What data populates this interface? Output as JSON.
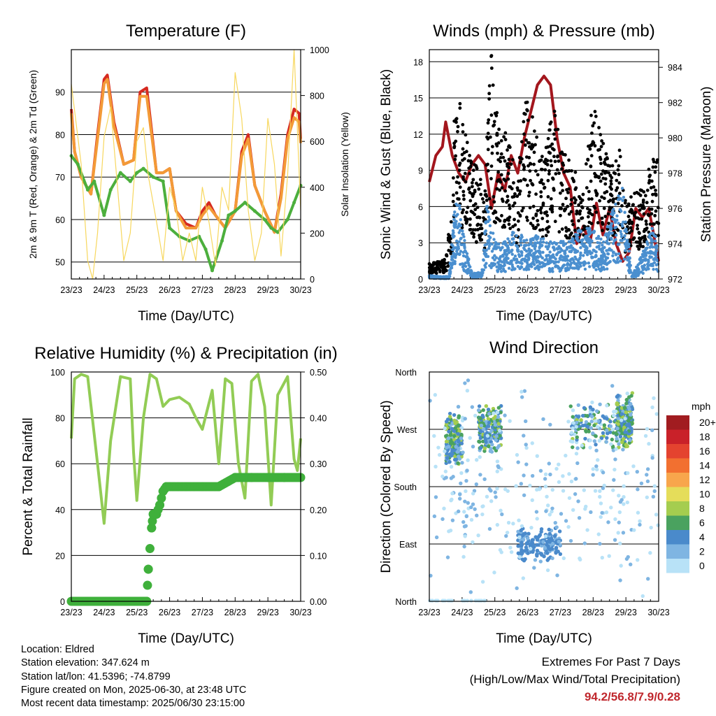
{
  "chart_data": [
    {
      "type": "line",
      "title": "Temperature (F)",
      "xlabel": "Time (Day/UTC)",
      "ylabel": "2m & 9m T (Red, Orange) & 2m Td (Green)",
      "y2label": "Solar Insolation (Yellow)",
      "x_ticks": [
        "23/23",
        "24/23",
        "25/23",
        "26/23",
        "27/23",
        "28/23",
        "29/23",
        "30/23"
      ],
      "ylim": [
        46,
        100
      ],
      "y_ticks": [
        50,
        60,
        70,
        80,
        90
      ],
      "y2lim": [
        0,
        1000
      ],
      "y2_ticks": [
        0,
        200,
        400,
        600,
        800,
        1000
      ],
      "grid": true,
      "series": [
        {
          "color": "#d62a20",
          "x": [
            0,
            0.1,
            0.3,
            0.6,
            0.8,
            1.0,
            1.1,
            1.3,
            1.6,
            1.9,
            2.1,
            2.3,
            2.6,
            2.8,
            3.0,
            3.2,
            3.5,
            3.8,
            4.0,
            4.2,
            4.4,
            4.7,
            5.0,
            5.2,
            5.4,
            5.6,
            5.9,
            6.2,
            6.4,
            6.6,
            6.8,
            6.95,
            7.0
          ],
          "values": [
            86,
            76,
            70,
            66,
            80,
            93,
            94,
            83,
            73,
            74,
            90,
            91,
            71,
            71,
            72,
            62,
            59,
            58,
            62,
            64,
            61,
            58,
            62,
            76,
            80,
            68,
            62,
            57,
            66,
            80,
            86,
            85,
            79
          ]
        },
        {
          "color": "#f39a37",
          "x": [
            0,
            0.1,
            0.3,
            0.6,
            0.8,
            1.0,
            1.1,
            1.3,
            1.6,
            1.9,
            2.1,
            2.3,
            2.6,
            2.8,
            3.0,
            3.2,
            3.5,
            3.8,
            4.0,
            4.2,
            4.4,
            4.7,
            5.0,
            5.2,
            5.4,
            5.6,
            5.9,
            6.2,
            6.4,
            6.6,
            6.8,
            6.95,
            7.0
          ],
          "values": [
            85,
            76,
            70,
            66,
            79,
            92,
            93,
            82,
            73,
            74,
            89,
            89,
            71,
            71,
            72,
            62,
            58,
            58,
            61,
            63,
            61,
            58,
            62,
            75,
            79,
            68,
            62,
            57,
            65,
            79,
            84,
            83,
            78
          ]
        },
        {
          "color": "#4caf3d",
          "x": [
            0,
            0.2,
            0.5,
            0.7,
            1.0,
            1.2,
            1.5,
            1.8,
            2.0,
            2.2,
            2.5,
            2.8,
            3.0,
            3.3,
            3.6,
            3.9,
            4.1,
            4.3,
            4.6,
            4.8,
            5.0,
            5.3,
            5.6,
            5.9,
            6.1,
            6.3,
            6.6,
            6.8,
            7.0
          ],
          "values": [
            75,
            73,
            67,
            69,
            61,
            67,
            71,
            69,
            71,
            72,
            70,
            69,
            58,
            56,
            55,
            56,
            53,
            48,
            55,
            61,
            62,
            64,
            62,
            60,
            58,
            57,
            60,
            64,
            68
          ]
        },
        {
          "color": "#f7d75e",
          "axis": "y2",
          "x": [
            0,
            0.3,
            0.5,
            0.65,
            0.8,
            1.0,
            1.2,
            1.35,
            1.6,
            1.8,
            2.0,
            2.2,
            2.35,
            2.6,
            2.8,
            3.0,
            3.2,
            3.4,
            3.6,
            3.8,
            4.0,
            4.2,
            4.4,
            4.6,
            4.8,
            5.0,
            5.2,
            5.4,
            5.6,
            5.8,
            6.0,
            6.2,
            6.4,
            6.6,
            6.8,
            7.0
          ],
          "values": [
            850,
            500,
            80,
            0,
            200,
            620,
            750,
            500,
            80,
            200,
            600,
            660,
            450,
            250,
            80,
            400,
            300,
            80,
            200,
            80,
            400,
            250,
            60,
            400,
            300,
            900,
            700,
            300,
            80,
            200,
            700,
            500,
            100,
            450,
            1000,
            300
          ]
        }
      ]
    },
    {
      "type": "scatter",
      "title": "Winds (mph) & Pressure (mb)",
      "xlabel": "Time (Day/UTC)",
      "ylabel": "Sonic Wind & Gust (Blue, Black)",
      "y2label": "Station Pressure (Maroon)",
      "x_ticks": [
        "23/23",
        "24/23",
        "25/23",
        "26/23",
        "27/23",
        "28/23",
        "29/23",
        "30/23"
      ],
      "ylim": [
        0,
        19
      ],
      "y_ticks": [
        0,
        3,
        6,
        9,
        12,
        15,
        18
      ],
      "y2lim": [
        972,
        985
      ],
      "y2_ticks": [
        972,
        974,
        976,
        978,
        980,
        982,
        984
      ],
      "grid": true,
      "series": [
        {
          "color": "#a3161d",
          "axis": "y2",
          "x": [
            0,
            0.2,
            0.4,
            0.5,
            0.7,
            0.9,
            1.1,
            1.3,
            1.5,
            1.7,
            1.9,
            2.0,
            2.1,
            2.3,
            2.5,
            2.7,
            2.9,
            3.1,
            3.3,
            3.5,
            3.7,
            3.9,
            4.1,
            4.3,
            4.5,
            4.7,
            4.9,
            5.1,
            5.3,
            5.5,
            5.7,
            5.9,
            6.1,
            6.3,
            6.5,
            6.7,
            6.9,
            7.0
          ],
          "values": [
            977.5,
            979,
            979.5,
            980.9,
            979,
            978,
            977.5,
            978.5,
            979,
            978.5,
            976,
            977,
            978,
            977,
            979,
            978,
            980,
            981.5,
            983,
            983.5,
            983,
            980,
            978,
            977.2,
            974,
            975,
            974,
            976.3,
            974.5,
            976,
            974,
            973,
            973.5,
            976,
            975.5,
            976,
            974,
            973
          ]
        },
        {
          "color": "#000000",
          "x": [
            0.1,
            0.5,
            0.7,
            0.75,
            0.8,
            0.9,
            1.0,
            1.7,
            1.75,
            1.8,
            1.9,
            2.0,
            2.5,
            2.7,
            2.9,
            3.5,
            3.7,
            3.8,
            4.0,
            4.5,
            4.7,
            5.0,
            5.5,
            5.8,
            6.0,
            6.5,
            6.8,
            6.95
          ],
          "values": [
            1.2,
            1.5,
            6,
            11.5,
            14.5,
            15.5,
            12,
            6.5,
            12,
            15,
            17.2,
            13,
            10,
            7,
            14.6,
            9,
            12,
            14.1,
            10,
            8,
            6.5,
            14,
            8.5,
            10,
            6,
            7,
            9,
            10
          ]
        },
        {
          "color": "#4a8fcf",
          "x": [
            0,
            0.3,
            0.6,
            0.75,
            0.9,
            1.0,
            1.3,
            1.6,
            1.75,
            2.0,
            2.3,
            2.6,
            3.0,
            3.3,
            3.6,
            4.0,
            4.3,
            4.6,
            5.0,
            5.3,
            5.6,
            5.9,
            6.2,
            6.5,
            6.8,
            7.0
          ],
          "values": [
            0.3,
            0.2,
            0.2,
            5,
            7,
            4,
            0.5,
            0.5,
            6,
            3,
            3,
            4,
            3,
            3.5,
            3,
            3,
            3,
            4,
            4,
            3,
            5.5,
            7.5,
            0.3,
            2,
            4,
            3
          ]
        }
      ]
    },
    {
      "type": "line",
      "title": "Relative Humidity (%) & Precipitation (in)",
      "xlabel": "Time (Day/UTC)",
      "ylabel": "Percent & Total Rainfall",
      "x_ticks": [
        "23/23",
        "24/23",
        "25/23",
        "26/23",
        "27/23",
        "28/23",
        "29/23",
        "30/23"
      ],
      "ylim": [
        0,
        100
      ],
      "y_ticks": [
        0,
        20,
        40,
        60,
        80,
        100
      ],
      "y2lim": [
        0,
        0.5
      ],
      "y2_ticks": [
        "0.00",
        "0.10",
        "0.20",
        "0.30",
        "0.40",
        "0.50"
      ],
      "grid": true,
      "series": [
        {
          "color": "#92cc55",
          "x": [
            0,
            0.1,
            0.3,
            0.5,
            0.8,
            1.0,
            1.2,
            1.5,
            1.8,
            1.9,
            2.0,
            2.2,
            2.4,
            2.6,
            2.8,
            3.0,
            3.3,
            3.6,
            3.8,
            4.0,
            4.3,
            4.5,
            4.7,
            4.9,
            5.1,
            5.3,
            5.5,
            5.7,
            5.9,
            6.1,
            6.3,
            6.6,
            6.8,
            6.9,
            7.0
          ],
          "values": [
            71,
            97,
            99,
            98,
            60,
            34,
            70,
            98,
            97,
            65,
            44,
            80,
            99,
            97,
            85,
            88,
            89,
            86,
            80,
            75,
            92,
            60,
            97,
            95,
            60,
            45,
            96,
            99,
            85,
            42,
            90,
            98,
            62,
            57,
            71
          ]
        },
        {
          "color": "#3fb03b",
          "axis": "y2",
          "x": [
            0,
            2.3,
            2.35,
            2.45,
            2.5,
            2.6,
            2.7,
            2.8,
            2.9,
            3.0,
            3.5,
            4.0,
            4.5,
            5.0,
            5.5,
            6.0,
            6.5,
            7.0
          ],
          "values": [
            0,
            0,
            0.07,
            0.16,
            0.19,
            0.19,
            0.21,
            0.24,
            0.25,
            0.25,
            0.25,
            0.25,
            0.25,
            0.27,
            0.27,
            0.27,
            0.27,
            0.27
          ]
        }
      ]
    },
    {
      "type": "scatter",
      "title": "Wind Direction",
      "xlabel": "Time (Day/UTC)",
      "ylabel": "Direction (Colored By Speed)",
      "x_ticks": [
        "23/23",
        "24/23",
        "25/23",
        "26/23",
        "27/23",
        "28/23",
        "29/23",
        "30/23"
      ],
      "y_ticks": [
        "North",
        "East",
        "South",
        "West",
        "North"
      ],
      "grid": true,
      "legend": {
        "title": "mph",
        "labels": [
          "20+",
          "18",
          "16",
          "14",
          "12",
          "10",
          "8",
          "6",
          "4",
          "2",
          "0"
        ],
        "colors": [
          "#a11c20",
          "#c92129",
          "#e4432f",
          "#f27030",
          "#f8a64c",
          "#e5dd5a",
          "#a5cd4f",
          "#4aa25f",
          "#4a8acb",
          "#7fb5e2",
          "#b8e2f7"
        ],
        "position": "right"
      },
      "clusters": [
        {
          "x": [
            0.5,
            1.0
          ],
          "dir": [
            210,
            300
          ],
          "speeds": [
            2,
            8
          ]
        },
        {
          "x": [
            1.5,
            2.2
          ],
          "dir": [
            230,
            310
          ],
          "speeds": [
            2,
            8
          ]
        },
        {
          "x": [
            2.7,
            4.0
          ],
          "dir": [
            60,
            120
          ],
          "speeds": [
            2,
            5
          ]
        },
        {
          "x": [
            4.3,
            6.2
          ],
          "dir": [
            230,
            320
          ],
          "speeds": [
            0,
            8
          ]
        },
        {
          "x": [
            5.7,
            6.2
          ],
          "dir": [
            240,
            330
          ],
          "speeds": [
            2,
            8
          ]
        },
        {
          "x": [
            0,
            7.0
          ],
          "dir": [
            0,
            360
          ],
          "speeds": [
            0,
            2
          ]
        }
      ]
    }
  ],
  "info": {
    "location": "Location: Eldred",
    "elevation": "Station elevation: 347.624 m",
    "latlon": "Station lat/lon: 41.5396; -74.8799",
    "created": "Figure created on Mon, 2025-06-30, at 23:48 UTC",
    "timestamp": "Most recent data timestamp: 2025/06/30 23:15:00"
  },
  "extremes": {
    "title": "Extremes For Past 7 Days",
    "subtitle": "(High/Low/Max Wind/Total Precipitation)",
    "values": "94.2/56.8/7.9/0.28"
  }
}
